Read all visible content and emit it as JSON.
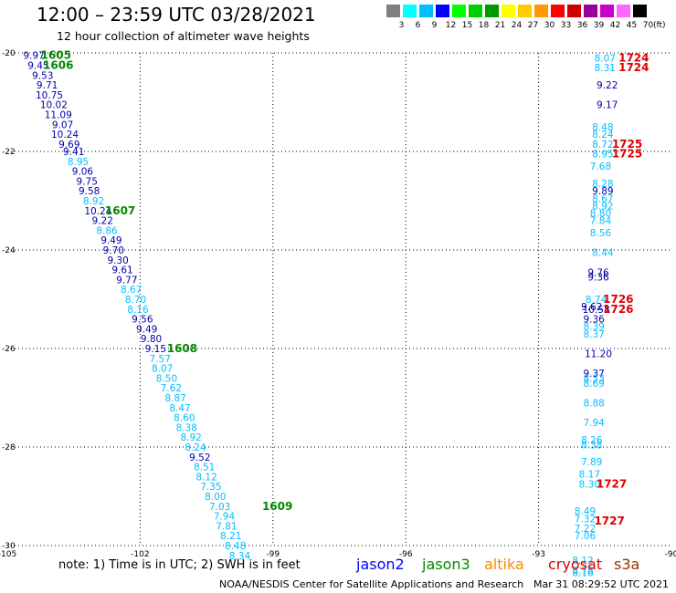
{
  "header": {
    "title": "12:00 – 23:59 UTC 03/28/2021",
    "subtitle": "12 hour collection of altimeter wave heights"
  },
  "scale": {
    "unit": "(ft)",
    "cells": [
      {
        "label": "3",
        "color": "#7f7f7f"
      },
      {
        "label": "6",
        "color": "#00ffff"
      },
      {
        "label": "9",
        "color": "#00bfff"
      },
      {
        "label": "12",
        "color": "#0000ff"
      },
      {
        "label": "15",
        "color": "#00ff00"
      },
      {
        "label": "18",
        "color": "#00cc00"
      },
      {
        "label": "21",
        "color": "#009900"
      },
      {
        "label": "24",
        "color": "#ffff00"
      },
      {
        "label": "27",
        "color": "#ffcc00"
      },
      {
        "label": "30",
        "color": "#ff9900"
      },
      {
        "label": "33",
        "color": "#ff0000"
      },
      {
        "label": "36",
        "color": "#cc0000"
      },
      {
        "label": "39",
        "color": "#990099"
      },
      {
        "label": "42",
        "color": "#cc00cc"
      },
      {
        "label": "45",
        "color": "#ff66ff"
      },
      {
        "label": "70",
        "color": "#000000"
      }
    ]
  },
  "colors": {
    "low": "#00bfff",
    "mid": "#0000aa",
    "jason3": "#008800",
    "cryosat": "#dd0000",
    "altika": "#ff8800",
    "jason2": "#0000ff",
    "s3a": "#993300"
  },
  "map": {
    "lon_labels": [
      "-105",
      "-102",
      "-99",
      "-96",
      "-93",
      "-90"
    ],
    "lat_labels": [
      "-20",
      "-22",
      "-24",
      "-26",
      "-28",
      "-30"
    ],
    "lon_range": [
      -105,
      -90
    ],
    "lat_range": [
      -20,
      -30
    ],
    "west_track": [
      {
        "lon": -104.4,
        "lat": -20.05,
        "v": "9.97",
        "c": "mid"
      },
      {
        "lon": -104.3,
        "lat": -20.25,
        "v": "9.45",
        "c": "mid"
      },
      {
        "lon": -104.2,
        "lat": -20.45,
        "v": "9.53",
        "c": "mid"
      },
      {
        "lon": -104.1,
        "lat": -20.65,
        "v": "9.71",
        "c": "mid"
      },
      {
        "lon": -104.05,
        "lat": -20.85,
        "v": "10.75",
        "c": "mid"
      },
      {
        "lon": -103.95,
        "lat": -21.05,
        "v": "10.02",
        "c": "mid"
      },
      {
        "lon": -103.85,
        "lat": -21.25,
        "v": "11.09",
        "c": "mid"
      },
      {
        "lon": -103.75,
        "lat": -21.45,
        "v": "9.07",
        "c": "mid"
      },
      {
        "lon": -103.7,
        "lat": -21.65,
        "v": "10.24",
        "c": "mid"
      },
      {
        "lon": -103.6,
        "lat": -21.85,
        "v": "9.69",
        "c": "mid"
      },
      {
        "lon": -103.5,
        "lat": -22.0,
        "v": "9.41",
        "c": "mid"
      },
      {
        "lon": -103.4,
        "lat": -22.2,
        "v": "8.95",
        "c": "low"
      },
      {
        "lon": -103.3,
        "lat": -22.4,
        "v": "9.06",
        "c": "mid"
      },
      {
        "lon": -103.2,
        "lat": -22.6,
        "v": "9.75",
        "c": "mid"
      },
      {
        "lon": -103.15,
        "lat": -22.8,
        "v": "9.58",
        "c": "mid"
      },
      {
        "lon": -103.05,
        "lat": -23.0,
        "v": "8.92",
        "c": "low"
      },
      {
        "lon": -102.95,
        "lat": -23.2,
        "v": "10.24",
        "c": "mid"
      },
      {
        "lon": -102.85,
        "lat": -23.4,
        "v": "9.22",
        "c": "mid"
      },
      {
        "lon": -102.75,
        "lat": -23.6,
        "v": "8.86",
        "c": "low"
      },
      {
        "lon": -102.65,
        "lat": -23.8,
        "v": "9.49",
        "c": "mid"
      },
      {
        "lon": -102.6,
        "lat": -24.0,
        "v": "9.70",
        "c": "mid"
      },
      {
        "lon": -102.5,
        "lat": -24.2,
        "v": "9.30",
        "c": "mid"
      },
      {
        "lon": -102.4,
        "lat": -24.4,
        "v": "9.61",
        "c": "mid"
      },
      {
        "lon": -102.3,
        "lat": -24.6,
        "v": "9.77",
        "c": "mid"
      },
      {
        "lon": -102.2,
        "lat": -24.8,
        "v": "8.67",
        "c": "low"
      },
      {
        "lon": -102.1,
        "lat": -25.0,
        "v": "8.70",
        "c": "low"
      },
      {
        "lon": -102.05,
        "lat": -25.2,
        "v": "8.16",
        "c": "low"
      },
      {
        "lon": -101.95,
        "lat": -25.4,
        "v": "9.56",
        "c": "mid"
      },
      {
        "lon": -101.85,
        "lat": -25.6,
        "v": "9.49",
        "c": "mid"
      },
      {
        "lon": -101.75,
        "lat": -25.8,
        "v": "9.80",
        "c": "mid"
      },
      {
        "lon": -101.65,
        "lat": -26.0,
        "v": "9.15",
        "c": "mid"
      },
      {
        "lon": -101.55,
        "lat": -26.2,
        "v": "7.57",
        "c": "low"
      },
      {
        "lon": -101.5,
        "lat": -26.4,
        "v": "8.07",
        "c": "low"
      },
      {
        "lon": -101.4,
        "lat": -26.6,
        "v": "8.50",
        "c": "low"
      },
      {
        "lon": -101.3,
        "lat": -26.8,
        "v": "7.62",
        "c": "low"
      },
      {
        "lon": -101.2,
        "lat": -27.0,
        "v": "8.87",
        "c": "low"
      },
      {
        "lon": -101.1,
        "lat": -27.2,
        "v": "8.47",
        "c": "low"
      },
      {
        "lon": -101.0,
        "lat": -27.4,
        "v": "8.60",
        "c": "low"
      },
      {
        "lon": -100.95,
        "lat": -27.6,
        "v": "8.38",
        "c": "low"
      },
      {
        "lon": -100.85,
        "lat": -27.8,
        "v": "8.92",
        "c": "low"
      },
      {
        "lon": -100.75,
        "lat": -28.0,
        "v": "8.24",
        "c": "low"
      },
      {
        "lon": -100.65,
        "lat": -28.2,
        "v": "9.52",
        "c": "mid"
      },
      {
        "lon": -100.55,
        "lat": -28.4,
        "v": "8.51",
        "c": "low"
      },
      {
        "lon": -100.5,
        "lat": -28.6,
        "v": "8.12",
        "c": "low"
      },
      {
        "lon": -100.4,
        "lat": -28.8,
        "v": "7.35",
        "c": "low"
      },
      {
        "lon": -100.3,
        "lat": -29.0,
        "v": "8.00",
        "c": "low"
      },
      {
        "lon": -100.2,
        "lat": -29.2,
        "v": "7.03",
        "c": "low"
      },
      {
        "lon": -100.1,
        "lat": -29.4,
        "v": "7.94",
        "c": "low"
      },
      {
        "lon": -100.05,
        "lat": -29.6,
        "v": "7.81",
        "c": "low"
      },
      {
        "lon": -99.95,
        "lat": -29.8,
        "v": "8.21",
        "c": "low"
      },
      {
        "lon": -99.85,
        "lat": -30.0,
        "v": "8.48",
        "c": "low"
      },
      {
        "lon": -99.75,
        "lat": -30.2,
        "v": "8.34",
        "c": "low"
      }
    ],
    "east_track": [
      {
        "lon": -91.5,
        "lat": -20.1,
        "v": "8.07",
        "c": "low"
      },
      {
        "lon": -91.5,
        "lat": -20.3,
        "v": "8.31",
        "c": "low"
      },
      {
        "lon": -91.45,
        "lat": -20.65,
        "v": "9.22",
        "c": "mid"
      },
      {
        "lon": -91.45,
        "lat": -21.05,
        "v": "9.17",
        "c": "mid"
      },
      {
        "lon": -91.55,
        "lat": -21.5,
        "v": "8.48",
        "c": "low"
      },
      {
        "lon": -91.55,
        "lat": -21.65,
        "v": "8.24",
        "c": "low"
      },
      {
        "lon": -91.55,
        "lat": -21.85,
        "v": "8.72",
        "c": "low"
      },
      {
        "lon": -91.55,
        "lat": -22.05,
        "v": "8.95",
        "c": "low"
      },
      {
        "lon": -91.6,
        "lat": -22.3,
        "v": "7.68",
        "c": "low"
      },
      {
        "lon": -91.55,
        "lat": -22.65,
        "v": "8.28",
        "c": "low"
      },
      {
        "lon": -91.55,
        "lat": -22.8,
        "v": "9.89",
        "c": "mid"
      },
      {
        "lon": -91.55,
        "lat": -22.95,
        "v": "8.67",
        "c": "low"
      },
      {
        "lon": -91.55,
        "lat": -23.1,
        "v": "8.92",
        "c": "low"
      },
      {
        "lon": -91.6,
        "lat": -23.25,
        "v": "8.80",
        "c": "low"
      },
      {
        "lon": -91.6,
        "lat": -23.4,
        "v": "7.84",
        "c": "low"
      },
      {
        "lon": -91.6,
        "lat": -23.65,
        "v": "8.56",
        "c": "low"
      },
      {
        "lon": -91.55,
        "lat": -24.05,
        "v": "8.44",
        "c": "low"
      },
      {
        "lon": -91.65,
        "lat": -24.45,
        "v": "9.76",
        "c": "mid"
      },
      {
        "lon": -91.65,
        "lat": -24.55,
        "v": "9.36",
        "c": "mid"
      },
      {
        "lon": -91.7,
        "lat": -25.0,
        "v": "8.74",
        "c": "low"
      },
      {
        "lon": -91.8,
        "lat": -25.15,
        "v": "9.62",
        "c": "mid"
      },
      {
        "lon": -91.7,
        "lat": -25.2,
        "v": "10.58",
        "c": "mid"
      },
      {
        "lon": -91.75,
        "lat": -25.4,
        "v": "9.36",
        "c": "mid"
      },
      {
        "lon": -91.75,
        "lat": -25.55,
        "v": "8.39",
        "c": "low"
      },
      {
        "lon": -91.75,
        "lat": -25.7,
        "v": "8.37",
        "c": "low"
      },
      {
        "lon": -91.65,
        "lat": -26.1,
        "v": "11.20",
        "c": "mid"
      },
      {
        "lon": -91.75,
        "lat": -26.5,
        "v": "9.37",
        "c": "mid"
      },
      {
        "lon": -91.75,
        "lat": -26.6,
        "v": "8.53",
        "c": "low"
      },
      {
        "lon": -91.75,
        "lat": -26.7,
        "v": "8.69",
        "c": "low"
      },
      {
        "lon": -91.75,
        "lat": -27.1,
        "v": "8.88",
        "c": "low"
      },
      {
        "lon": -91.75,
        "lat": -27.5,
        "v": "7.94",
        "c": "low"
      },
      {
        "lon": -91.8,
        "lat": -27.85,
        "v": "8.26",
        "c": "low"
      },
      {
        "lon": -91.8,
        "lat": -27.95,
        "v": "8.38",
        "c": "low"
      },
      {
        "lon": -91.8,
        "lat": -28.3,
        "v": "7.89",
        "c": "low"
      },
      {
        "lon": -91.85,
        "lat": -28.55,
        "v": "8.17",
        "c": "low"
      },
      {
        "lon": -91.85,
        "lat": -28.75,
        "v": "8.30",
        "c": "low"
      },
      {
        "lon": -91.95,
        "lat": -29.3,
        "v": "8.49",
        "c": "low"
      },
      {
        "lon": -91.95,
        "lat": -29.45,
        "v": "7.32",
        "c": "low"
      },
      {
        "lon": -91.95,
        "lat": -29.65,
        "v": "7.22",
        "c": "low"
      },
      {
        "lon": -91.95,
        "lat": -29.8,
        "v": "7.06",
        "c": "low"
      },
      {
        "lon": -92.0,
        "lat": -30.3,
        "v": "8.12",
        "c": "low"
      },
      {
        "lon": -92.0,
        "lat": -30.5,
        "v": "8.78",
        "c": "low"
      },
      {
        "lon": -92.0,
        "lat": -30.55,
        "v": "8.16",
        "c": "low"
      }
    ],
    "time_labels": [
      {
        "lon": -103.9,
        "lat": -20.05,
        "text": "1605",
        "c": "jason3"
      },
      {
        "lon": -103.85,
        "lat": -20.25,
        "text": "1606",
        "c": "jason3"
      },
      {
        "lon": -102.45,
        "lat": -23.2,
        "text": "1607",
        "c": "jason3"
      },
      {
        "lon": -101.05,
        "lat": -26.0,
        "text": "1608",
        "c": "jason3"
      },
      {
        "lon": -98.9,
        "lat": -29.2,
        "text": "1609",
        "c": "jason3"
      },
      {
        "lon": -90.85,
        "lat": -20.1,
        "text": "1724",
        "c": "cryosat"
      },
      {
        "lon": -90.85,
        "lat": -20.3,
        "text": "1724",
        "c": "cryosat"
      },
      {
        "lon": -91.0,
        "lat": -21.85,
        "text": "1725",
        "c": "cryosat"
      },
      {
        "lon": -91.0,
        "lat": -22.05,
        "text": "1725",
        "c": "cryosat"
      },
      {
        "lon": -91.2,
        "lat": -25.0,
        "text": "1726",
        "c": "cryosat"
      },
      {
        "lon": -91.2,
        "lat": -25.2,
        "text": "1726",
        "c": "cryosat"
      },
      {
        "lon": -91.35,
        "lat": -28.75,
        "text": "1727",
        "c": "cryosat"
      },
      {
        "lon": -91.4,
        "lat": -29.5,
        "text": "1727",
        "c": "cryosat"
      }
    ]
  },
  "footer": {
    "note": "note:  1) Time is in UTC;  2) SWH is in feet",
    "legend": [
      {
        "text": "jason2",
        "c": "jason2"
      },
      {
        "text": "jason3",
        "c": "jason3"
      },
      {
        "text": "altika",
        "c": "altika"
      },
      {
        "text": "cryosat",
        "c": "cryosat"
      },
      {
        "text": "s3a",
        "c": "s3a"
      }
    ],
    "credit": "NOAA/NESDIS Center for Satellite Applications and Research",
    "timestamp": "Mar 31 08:29:52 UTC 2021"
  }
}
